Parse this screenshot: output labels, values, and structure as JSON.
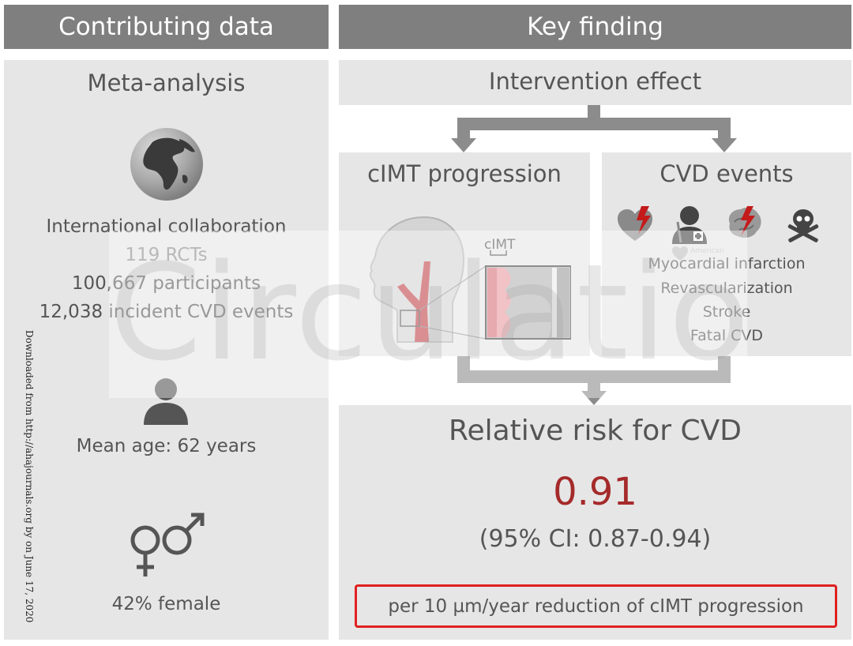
{
  "headers": {
    "left": "Contributing data",
    "right": "Key finding"
  },
  "meta": {
    "title": "Meta-analysis",
    "collab": "International collaboration",
    "rcts": "119 RCTs",
    "participants": "100,667 participants",
    "events": "12,038 incident CVD events",
    "age": "Mean age: 62 years",
    "female": "42% female"
  },
  "intervention": {
    "title": "Intervention effect"
  },
  "cimt": {
    "title": "cIMT progression",
    "label": "cIMT"
  },
  "cvd": {
    "title": "CVD events",
    "items": [
      "Myocardial infarction",
      "Revascularization",
      "Stroke",
      "Fatal CVD"
    ],
    "logo_text": "American"
  },
  "risk": {
    "title": "Relative risk for CVD",
    "value": "0.91",
    "ci": "(95% CI: 0.87-0.94)",
    "note": "per 10 µm/year reduction of cIMT progression"
  },
  "watermark": {
    "journal": "Circulation",
    "download": "Downloaded from http://ahajournals.org by on June 17, 2020"
  },
  "colors": {
    "header_bg": "#7f7f7f",
    "panel_bg": "#e6e6e6",
    "arrow": "#8c8c8c",
    "accent_red": "#a52a2a",
    "highlight_border": "#e02020"
  }
}
